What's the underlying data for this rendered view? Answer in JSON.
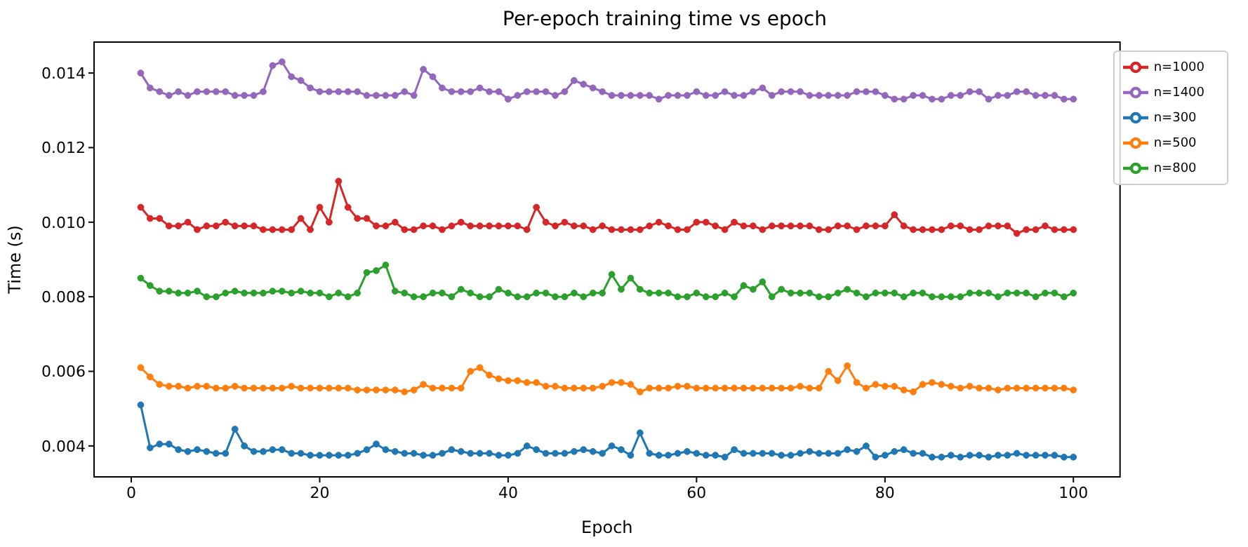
{
  "chart_data": {
    "type": "line",
    "title": "Per-epoch training time vs epoch",
    "xlabel": "Epoch",
    "ylabel": "Time (s)",
    "marker": "circle",
    "line_style": "solid",
    "grid": false,
    "legend": "top right",
    "xlim": [
      -3.95,
      104.95
    ],
    "xticks": [
      0,
      20,
      40,
      60,
      80,
      100
    ],
    "ylim": [
      0.00317,
      0.01483
    ],
    "yticks": [
      {
        "value": 0.004,
        "label": "0.004"
      },
      {
        "value": 0.006,
        "label": "0.006"
      },
      {
        "value": 0.008,
        "label": "0.008"
      },
      {
        "value": 0.01,
        "label": "0.010"
      },
      {
        "value": 0.012,
        "label": "0.012"
      },
      {
        "value": 0.014,
        "label": "0.014"
      }
    ],
    "x": [
      1,
      2,
      3,
      4,
      5,
      6,
      7,
      8,
      9,
      10,
      11,
      12,
      13,
      14,
      15,
      16,
      17,
      18,
      19,
      20,
      21,
      22,
      23,
      24,
      25,
      26,
      27,
      28,
      29,
      30,
      31,
      32,
      33,
      34,
      35,
      36,
      37,
      38,
      39,
      40,
      41,
      42,
      43,
      44,
      45,
      46,
      47,
      48,
      49,
      50,
      51,
      52,
      53,
      54,
      55,
      56,
      57,
      58,
      59,
      60,
      61,
      62,
      63,
      64,
      65,
      66,
      67,
      68,
      69,
      70,
      71,
      72,
      73,
      74,
      75,
      76,
      77,
      78,
      79,
      80,
      81,
      82,
      83,
      84,
      85,
      86,
      87,
      88,
      89,
      90,
      91,
      92,
      93,
      94,
      95,
      96,
      97,
      98,
      99,
      100
    ],
    "series": [
      {
        "name": "n=300",
        "color": "#1f77b4",
        "values": [
          0.0051,
          0.00395,
          0.00405,
          0.00405,
          0.0039,
          0.00385,
          0.0039,
          0.00385,
          0.0038,
          0.0038,
          0.00445,
          0.004,
          0.00385,
          0.00385,
          0.0039,
          0.0039,
          0.0038,
          0.0038,
          0.00375,
          0.00375,
          0.00375,
          0.00375,
          0.00375,
          0.0038,
          0.0039,
          0.00405,
          0.0039,
          0.00385,
          0.0038,
          0.0038,
          0.00375,
          0.00375,
          0.0038,
          0.0039,
          0.00385,
          0.0038,
          0.0038,
          0.0038,
          0.00375,
          0.00375,
          0.0038,
          0.004,
          0.0039,
          0.0038,
          0.0038,
          0.0038,
          0.00385,
          0.0039,
          0.00385,
          0.0038,
          0.004,
          0.0039,
          0.00375,
          0.00435,
          0.0038,
          0.00375,
          0.00375,
          0.0038,
          0.00385,
          0.0038,
          0.00375,
          0.00375,
          0.0037,
          0.0039,
          0.0038,
          0.0038,
          0.0038,
          0.0038,
          0.00375,
          0.00375,
          0.0038,
          0.00385,
          0.0038,
          0.0038,
          0.0038,
          0.0039,
          0.00385,
          0.004,
          0.0037,
          0.00375,
          0.00385,
          0.0039,
          0.0038,
          0.0038,
          0.0037,
          0.0037,
          0.00375,
          0.0037,
          0.00375,
          0.00375,
          0.0037,
          0.00375,
          0.00375,
          0.0038,
          0.00375,
          0.00375,
          0.00375,
          0.00375,
          0.0037,
          0.0037
        ]
      },
      {
        "name": "n=500",
        "color": "#ff7f0e",
        "values": [
          0.0061,
          0.00585,
          0.00565,
          0.0056,
          0.0056,
          0.00555,
          0.0056,
          0.0056,
          0.00555,
          0.00555,
          0.0056,
          0.00555,
          0.00555,
          0.00555,
          0.00555,
          0.00555,
          0.0056,
          0.00555,
          0.00555,
          0.00555,
          0.00555,
          0.00555,
          0.00555,
          0.0055,
          0.0055,
          0.0055,
          0.0055,
          0.0055,
          0.00545,
          0.0055,
          0.00565,
          0.00555,
          0.00555,
          0.00555,
          0.00555,
          0.006,
          0.0061,
          0.0059,
          0.0058,
          0.00575,
          0.00575,
          0.0057,
          0.0057,
          0.0056,
          0.0056,
          0.00555,
          0.00555,
          0.00555,
          0.00555,
          0.0056,
          0.0057,
          0.0057,
          0.00565,
          0.00545,
          0.00555,
          0.00555,
          0.00555,
          0.0056,
          0.0056,
          0.00555,
          0.00555,
          0.00555,
          0.00555,
          0.00555,
          0.00555,
          0.00555,
          0.00555,
          0.00555,
          0.00555,
          0.00555,
          0.0056,
          0.00555,
          0.00555,
          0.006,
          0.00575,
          0.00615,
          0.0057,
          0.00555,
          0.00565,
          0.0056,
          0.0056,
          0.0055,
          0.00545,
          0.00565,
          0.0057,
          0.00565,
          0.0056,
          0.00555,
          0.0056,
          0.00555,
          0.00555,
          0.0055,
          0.00555,
          0.00555,
          0.00555,
          0.00555,
          0.00555,
          0.00555,
          0.00555,
          0.0055
        ]
      },
      {
        "name": "n=800",
        "color": "#2ca02c",
        "values": [
          0.0085,
          0.0083,
          0.00815,
          0.00815,
          0.0081,
          0.0081,
          0.00815,
          0.008,
          0.008,
          0.0081,
          0.00815,
          0.0081,
          0.0081,
          0.0081,
          0.00815,
          0.00815,
          0.0081,
          0.00815,
          0.0081,
          0.0081,
          0.008,
          0.0081,
          0.008,
          0.0081,
          0.00865,
          0.0087,
          0.00885,
          0.00815,
          0.0081,
          0.008,
          0.008,
          0.0081,
          0.0081,
          0.008,
          0.0082,
          0.0081,
          0.008,
          0.008,
          0.0082,
          0.0081,
          0.008,
          0.008,
          0.0081,
          0.0081,
          0.008,
          0.008,
          0.0081,
          0.008,
          0.0081,
          0.0081,
          0.0086,
          0.0082,
          0.0085,
          0.0082,
          0.0081,
          0.0081,
          0.0081,
          0.008,
          0.008,
          0.0081,
          0.008,
          0.008,
          0.0081,
          0.008,
          0.0083,
          0.0082,
          0.0084,
          0.008,
          0.0082,
          0.0081,
          0.0081,
          0.0081,
          0.008,
          0.008,
          0.0081,
          0.0082,
          0.0081,
          0.008,
          0.0081,
          0.0081,
          0.0081,
          0.008,
          0.0081,
          0.0081,
          0.008,
          0.008,
          0.008,
          0.008,
          0.0081,
          0.0081,
          0.0081,
          0.008,
          0.0081,
          0.0081,
          0.0081,
          0.008,
          0.0081,
          0.0081,
          0.008,
          0.0081
        ]
      },
      {
        "name": "n=1000",
        "color": "#d62728",
        "values": [
          0.0104,
          0.0101,
          0.0101,
          0.0099,
          0.0099,
          0.01,
          0.0098,
          0.0099,
          0.0099,
          0.01,
          0.0099,
          0.0099,
          0.0099,
          0.0098,
          0.0098,
          0.0098,
          0.0098,
          0.0101,
          0.0098,
          0.0104,
          0.01,
          0.0111,
          0.0104,
          0.0101,
          0.0101,
          0.0099,
          0.0099,
          0.01,
          0.0098,
          0.0098,
          0.0099,
          0.0099,
          0.0098,
          0.0099,
          0.01,
          0.0099,
          0.0099,
          0.0099,
          0.0099,
          0.0099,
          0.0099,
          0.0098,
          0.0104,
          0.01,
          0.0099,
          0.01,
          0.0099,
          0.0099,
          0.0098,
          0.0099,
          0.0098,
          0.0098,
          0.0098,
          0.0098,
          0.0099,
          0.01,
          0.0099,
          0.0098,
          0.0098,
          0.01,
          0.01,
          0.0099,
          0.0098,
          0.01,
          0.0099,
          0.0099,
          0.0098,
          0.0099,
          0.0099,
          0.0099,
          0.0099,
          0.0099,
          0.0098,
          0.0098,
          0.0099,
          0.0099,
          0.0098,
          0.0099,
          0.0099,
          0.0099,
          0.0102,
          0.0099,
          0.0098,
          0.0098,
          0.0098,
          0.0098,
          0.0099,
          0.0099,
          0.0098,
          0.0098,
          0.0099,
          0.0099,
          0.0099,
          0.0097,
          0.0098,
          0.0098,
          0.0099,
          0.0098,
          0.0098,
          0.0098
        ]
      },
      {
        "name": "n=1400",
        "color": "#9467bd",
        "values": [
          0.014,
          0.0136,
          0.0135,
          0.0134,
          0.0135,
          0.0134,
          0.0135,
          0.0135,
          0.0135,
          0.0135,
          0.0134,
          0.0134,
          0.0134,
          0.0135,
          0.0142,
          0.0143,
          0.0139,
          0.0138,
          0.0136,
          0.0135,
          0.0135,
          0.0135,
          0.0135,
          0.0135,
          0.0134,
          0.0134,
          0.0134,
          0.0134,
          0.0135,
          0.0134,
          0.0141,
          0.0139,
          0.0136,
          0.0135,
          0.0135,
          0.0135,
          0.0136,
          0.0135,
          0.0135,
          0.0133,
          0.0134,
          0.0135,
          0.0135,
          0.0135,
          0.0134,
          0.0135,
          0.0138,
          0.0137,
          0.0136,
          0.0135,
          0.0134,
          0.0134,
          0.0134,
          0.0134,
          0.0134,
          0.0133,
          0.0134,
          0.0134,
          0.0134,
          0.0135,
          0.0134,
          0.0134,
          0.0135,
          0.0134,
          0.0134,
          0.0135,
          0.0136,
          0.0134,
          0.0135,
          0.0135,
          0.0135,
          0.0134,
          0.0134,
          0.0134,
          0.0134,
          0.0134,
          0.0135,
          0.0135,
          0.0135,
          0.0134,
          0.0133,
          0.0133,
          0.0134,
          0.0134,
          0.0133,
          0.0133,
          0.0134,
          0.0134,
          0.0135,
          0.0135,
          0.0133,
          0.0134,
          0.0134,
          0.0135,
          0.0135,
          0.0134,
          0.0134,
          0.0134,
          0.0133,
          0.0133
        ]
      }
    ]
  }
}
